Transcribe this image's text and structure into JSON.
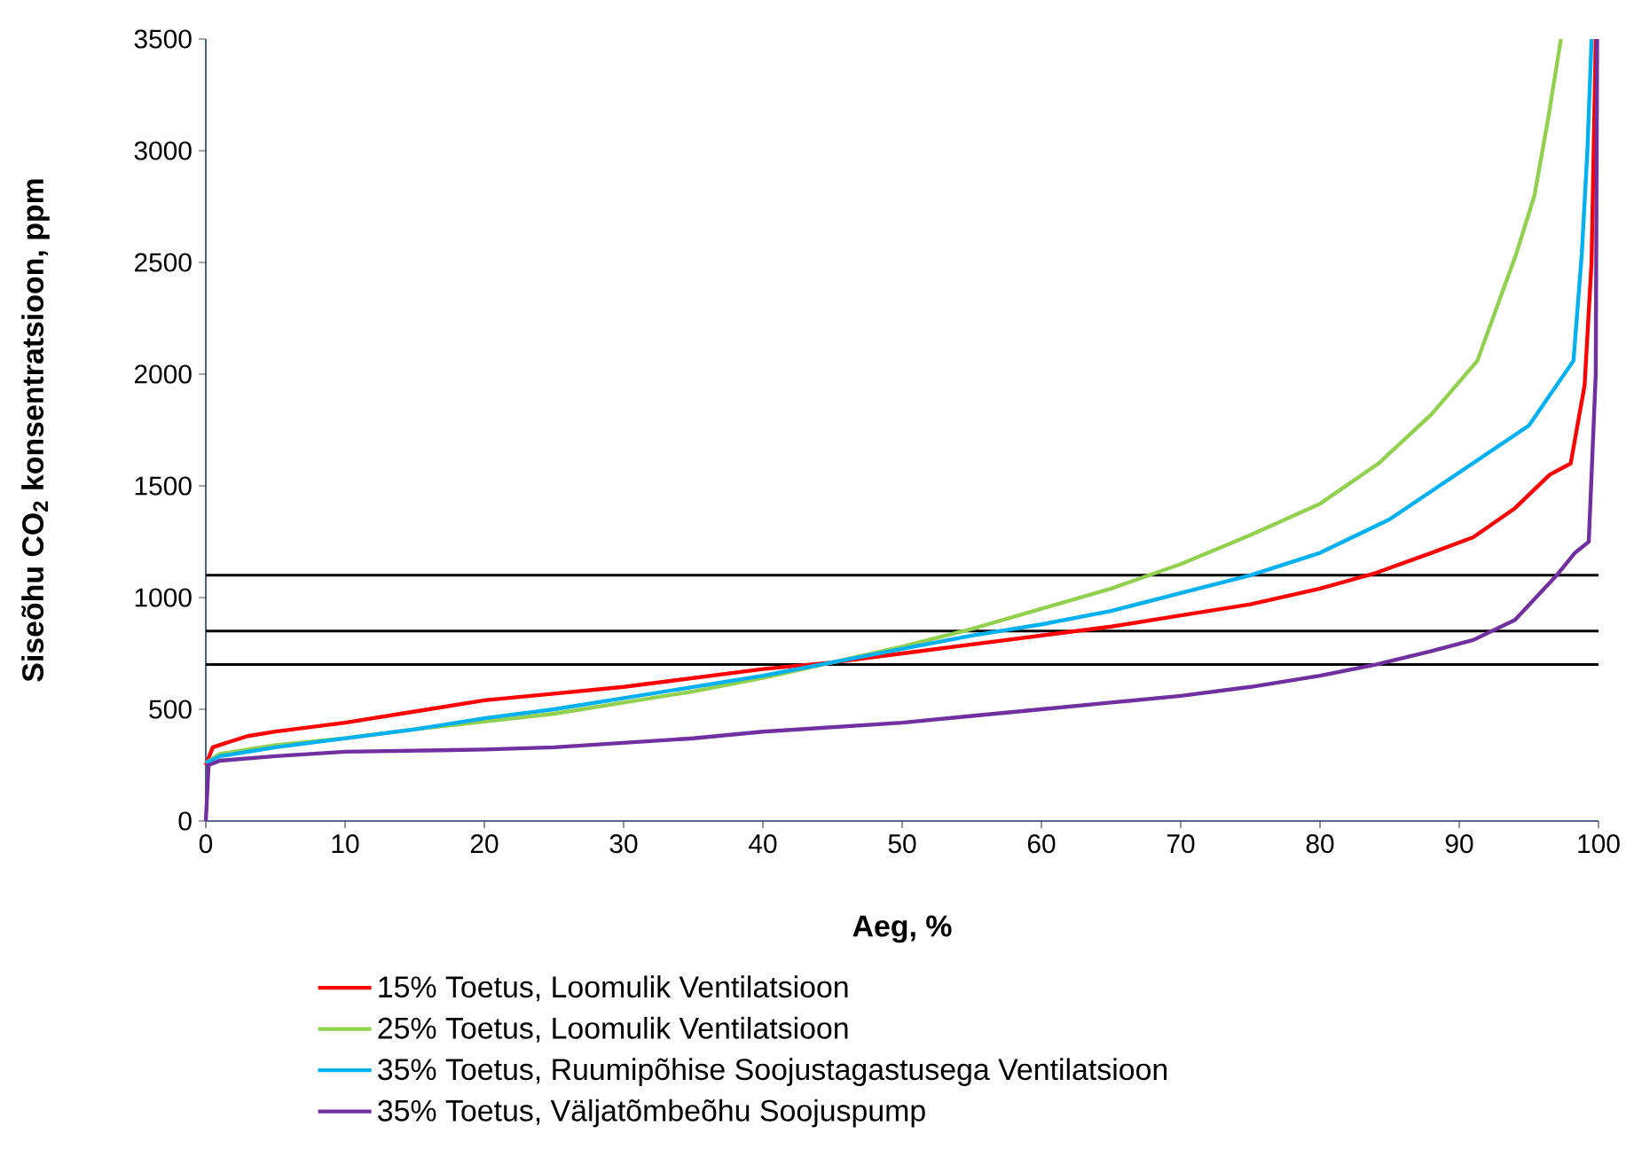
{
  "chart_data": {
    "type": "line",
    "xlabel": "Aeg,  %",
    "ylabel": "Siseõhu CO$_{2}$ konsentratsioon, ppm",
    "xlim": [
      0,
      100
    ],
    "ylim": [
      0,
      3500
    ],
    "xticks": [
      0,
      10,
      20,
      30,
      40,
      50,
      60,
      70,
      80,
      90,
      100
    ],
    "yticks": [
      0,
      500,
      1000,
      1500,
      2000,
      2500,
      3000,
      3500
    ],
    "legend": "bottom",
    "ref_lines": [
      {
        "axis": "y",
        "value": 1100,
        "color": "#000000"
      },
      {
        "axis": "y",
        "value": 850,
        "color": "#000000"
      },
      {
        "axis": "y",
        "value": 700,
        "color": "#000000"
      }
    ],
    "series": [
      {
        "name": "15% Toetus, Loomulik Ventilatsioon",
        "color": "#ff0000",
        "x": [
          0,
          0.5,
          3,
          5,
          10,
          15,
          20,
          25,
          30,
          35,
          40,
          45,
          50,
          55,
          60,
          65,
          70,
          75,
          80,
          84,
          88,
          91,
          94,
          96.5,
          98,
          99,
          99.5,
          99.8
        ],
        "values": [
          250,
          330,
          380,
          400,
          440,
          490,
          540,
          570,
          600,
          640,
          680,
          710,
          750,
          790,
          830,
          870,
          920,
          970,
          1040,
          1110,
          1200,
          1270,
          1400,
          1550,
          1600,
          1950,
          2500,
          3500
        ]
      },
      {
        "name": "25% Toetus, Loomulik Ventilatsioon",
        "color": "#92d050",
        "x": [
          0,
          1,
          5,
          10,
          15,
          20,
          25,
          30,
          35,
          40,
          45,
          50,
          55,
          60,
          65,
          70,
          75,
          80,
          84.2,
          88,
          91.3,
          94.1,
          95.4,
          96.4,
          97.3
        ],
        "values": [
          260,
          300,
          340,
          370,
          410,
          445,
          480,
          530,
          580,
          640,
          710,
          780,
          860,
          950,
          1040,
          1150,
          1280,
          1420,
          1600,
          1820,
          2060,
          2540,
          2800,
          3150,
          3500
        ]
      },
      {
        "name": "35% Toetus, Ruumipõhise Soojustagastusega Ventilatsioon",
        "color": "#00b0f0",
        "x": [
          0,
          1,
          5,
          10,
          15,
          20,
          25,
          30,
          35,
          40,
          45,
          50,
          55,
          60,
          65,
          70,
          75,
          80,
          85,
          90,
          95,
          98.2,
          98.8,
          99.2,
          99.5
        ],
        "values": [
          260,
          290,
          330,
          370,
          410,
          460,
          500,
          550,
          600,
          650,
          710,
          770,
          830,
          880,
          940,
          1020,
          1100,
          1200,
          1350,
          1560,
          1770,
          2060,
          2540,
          3000,
          3500
        ]
      },
      {
        "name": "35% Toetus, Väljatõmbeõhu Soojuspump",
        "color": "#7030a0",
        "x": [
          0,
          0.2,
          1,
          5,
          10,
          20,
          25,
          30,
          35,
          40,
          45,
          50,
          55,
          60,
          65,
          70,
          75,
          80,
          84,
          88,
          91,
          94,
          95.5,
          97,
          98.3,
          99.3,
          99.8,
          99.9
        ],
        "values": [
          0,
          250,
          270,
          290,
          310,
          320,
          330,
          350,
          370,
          400,
          420,
          440,
          470,
          500,
          530,
          560,
          600,
          650,
          700,
          760,
          810,
          900,
          1000,
          1100,
          1200,
          1250,
          2000,
          3500
        ]
      }
    ]
  }
}
